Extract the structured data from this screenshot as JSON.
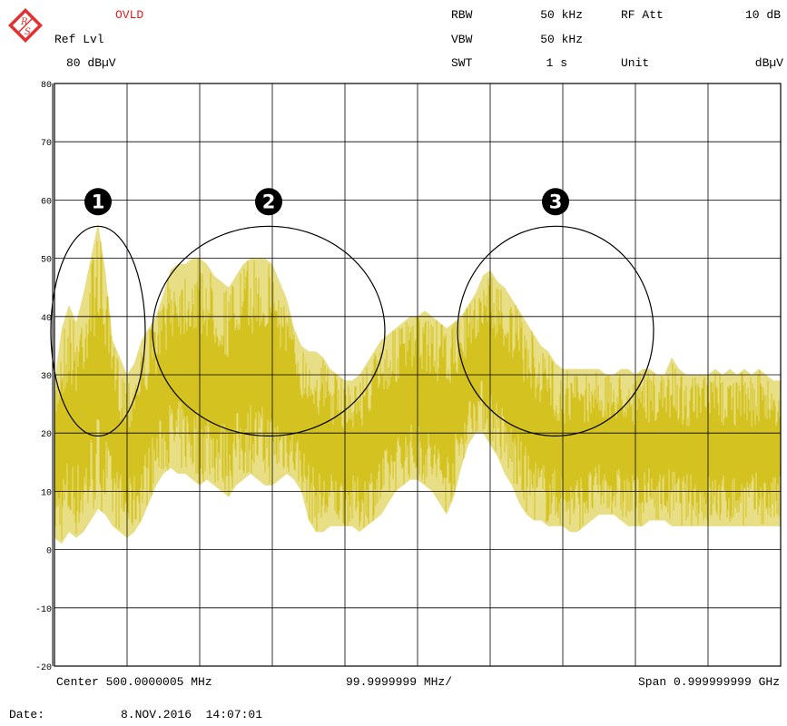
{
  "header": {
    "status": "OVLD",
    "ref_lvl_label": "Ref Lvl",
    "ref_lvl_value": "80 dBµV",
    "rbw_label": "RBW",
    "rbw_value": "50 kHz",
    "vbw_label": "VBW",
    "vbw_value": "50 kHz",
    "swt_label": "SWT",
    "swt_value": "1 s",
    "rf_att_label": "RF Att",
    "rf_att_value": "10 dB",
    "unit_label": "Unit",
    "unit_value": "dBµV"
  },
  "footer": {
    "center": "Center 500.0000005 MHz",
    "per_div": "99.9999999 MHz/",
    "span": "Span 0.999999999 GHz",
    "date_label": "Date:",
    "date_value": "8.NOV.2016  14:07:01"
  },
  "colors": {
    "trace": "#d4c220",
    "status": "#e02020",
    "logo": "#e03030",
    "grid": "#000000"
  },
  "chart_data": {
    "type": "area",
    "x_unit": "MHz",
    "y_unit": "dBµV",
    "xlim": [
      0,
      1000
    ],
    "ylim": [
      -20,
      80
    ],
    "y_ticks": [
      80,
      70,
      60,
      50,
      40,
      30,
      20,
      10,
      0,
      -10,
      -20
    ],
    "x_divisions": 10,
    "grid": true,
    "series": [
      {
        "x": [
          0,
          10,
          20,
          30,
          40,
          50,
          60,
          70,
          80,
          90,
          100,
          110,
          120,
          130,
          140,
          150,
          160,
          170,
          180,
          190,
          200,
          210,
          220,
          230,
          240,
          250,
          260,
          270,
          280,
          290,
          300,
          310,
          320,
          330,
          340,
          350,
          360,
          370,
          380,
          390,
          400,
          410,
          420,
          430,
          440,
          450,
          460,
          470,
          480,
          490,
          500,
          510,
          520,
          530,
          540,
          550,
          560,
          570,
          580,
          590,
          600,
          610,
          620,
          630,
          640,
          650,
          660,
          670,
          680,
          690,
          700,
          710,
          720,
          730,
          740,
          750,
          760,
          770,
          780,
          790,
          800,
          810,
          820,
          830,
          840,
          850,
          860,
          870,
          880,
          890,
          900,
          910,
          920,
          930,
          940,
          950,
          960,
          970,
          980,
          990,
          1000
        ],
        "max": [
          29,
          38,
          42,
          39,
          44,
          50,
          56,
          48,
          36,
          33,
          30,
          32,
          36,
          38,
          40,
          44,
          48,
          49,
          49,
          50,
          50,
          49,
          47,
          46,
          45,
          47,
          49,
          50,
          50,
          50,
          49,
          46,
          43,
          38,
          35,
          34,
          34,
          33,
          31,
          30,
          29,
          29,
          30,
          32,
          34,
          36,
          37,
          38,
          39,
          40,
          40,
          41,
          40,
          39,
          38,
          39,
          40,
          42,
          44,
          47,
          48,
          46,
          45,
          43,
          41,
          39,
          37,
          35,
          34,
          32,
          31,
          31,
          31,
          31,
          31,
          31,
          30,
          30,
          31,
          31,
          30,
          31,
          31,
          30,
          30,
          33,
          31,
          30,
          30,
          30,
          30,
          31,
          30,
          31,
          30,
          31,
          30,
          31,
          30,
          29,
          29
        ],
        "min": [
          2,
          1,
          3,
          2,
          3,
          5,
          7,
          6,
          4,
          3,
          2,
          3,
          5,
          8,
          11,
          13,
          14,
          13,
          13,
          12,
          11,
          12,
          11,
          10,
          9,
          11,
          12,
          13,
          12,
          11,
          11,
          12,
          13,
          12,
          10,
          5,
          3,
          3,
          4,
          4,
          4,
          4,
          3,
          4,
          5,
          6,
          8,
          10,
          11,
          12,
          12,
          11,
          10,
          8,
          6,
          9,
          14,
          18,
          20,
          20,
          18,
          16,
          13,
          11,
          8,
          6,
          5,
          5,
          4,
          4,
          4,
          3,
          3,
          4,
          5,
          6,
          6,
          6,
          5,
          4,
          4,
          4,
          5,
          5,
          5,
          4,
          4,
          4,
          4,
          4,
          4,
          4,
          4,
          4,
          4,
          4,
          4,
          4,
          4,
          4,
          4
        ]
      }
    ],
    "annotations": [
      {
        "label": "1",
        "cx": 60,
        "cy": 37.5,
        "rx": 65,
        "ry": 18
      },
      {
        "label": "2",
        "cx": 295,
        "cy": 37.5,
        "rx": 160,
        "ry": 18
      },
      {
        "label": "3",
        "cx": 690,
        "cy": 37.5,
        "rx": 135,
        "ry": 18
      }
    ]
  }
}
